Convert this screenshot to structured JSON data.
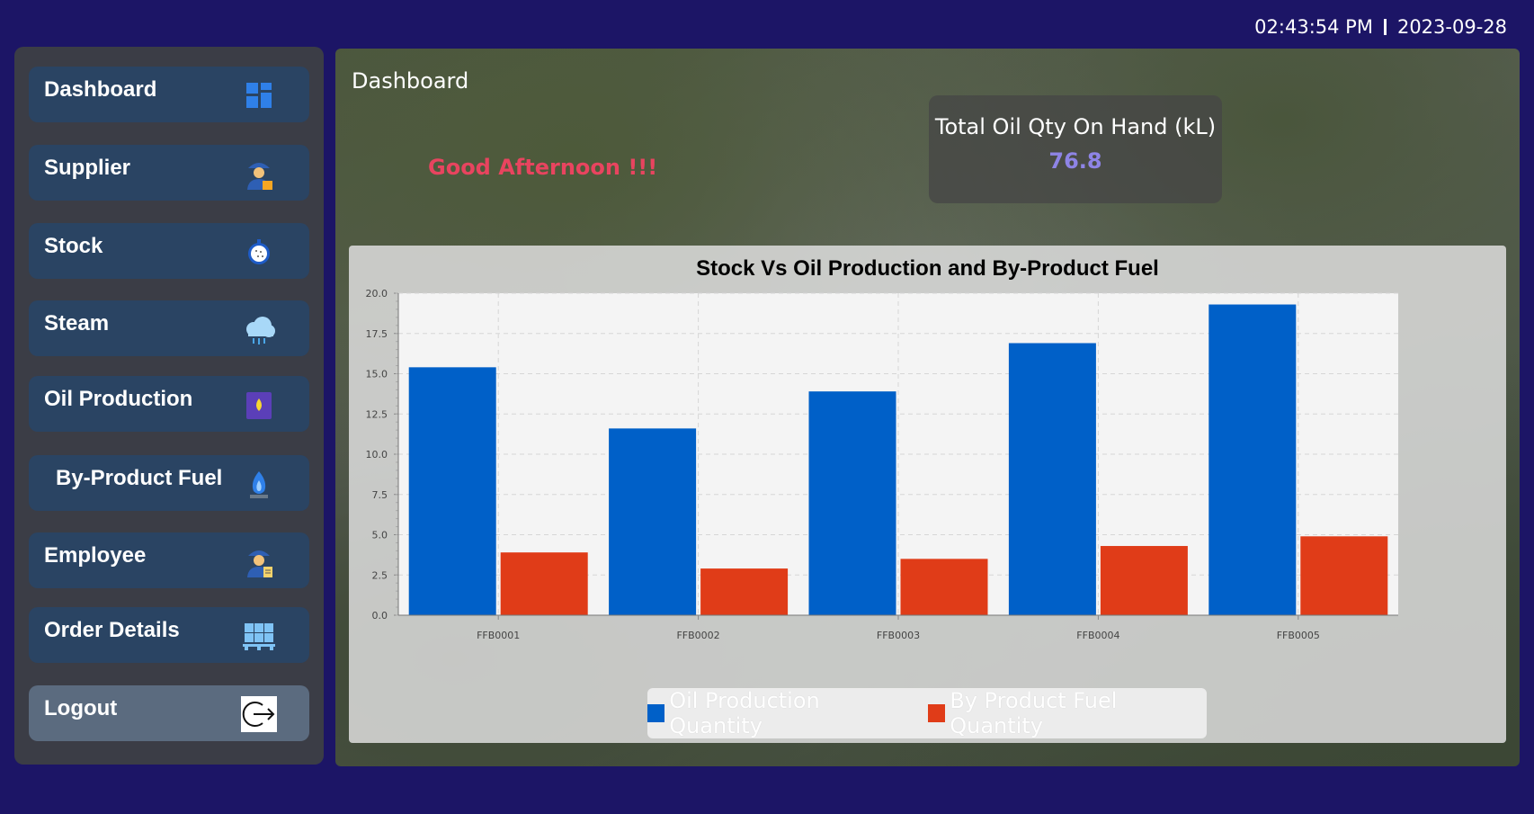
{
  "header": {
    "time": "02:43:54 PM",
    "date": "2023-09-28"
  },
  "sidebar": {
    "items": [
      {
        "label": "Dashboard",
        "icon": "dashboard-icon"
      },
      {
        "label": "Supplier",
        "icon": "supplier-worker-icon"
      },
      {
        "label": "Stock",
        "icon": "stock-fruit-icon"
      },
      {
        "label": "Steam",
        "icon": "steam-cloud-icon"
      },
      {
        "label": "Oil Production",
        "icon": "oil-drop-icon"
      },
      {
        "label": "By-Product Fuel",
        "icon": "fuel-flame-icon"
      },
      {
        "label": "Employee",
        "icon": "employee-worker-icon"
      },
      {
        "label": "Order Details",
        "icon": "pallet-boxes-icon"
      },
      {
        "label": "Logout",
        "icon": "logout-icon"
      }
    ]
  },
  "main": {
    "title": "Dashboard",
    "greeting": "Good Afternoon !!!",
    "stat": {
      "label": "Total Oil Qty On Hand (kL)",
      "value": "76.8"
    }
  },
  "colors": {
    "background": "#1c1566",
    "nav_item": "#2a4463",
    "logout_item": "#5b6b7f",
    "greeting": "#e8445f",
    "stat_value": "#8e84e6",
    "series_oil": "#0060c8",
    "series_fuel": "#e03c18"
  },
  "chart_data": {
    "type": "bar",
    "title": "Stock Vs Oil Production and By-Product Fuel",
    "xlabel": "",
    "ylabel": "",
    "categories": [
      "FFB0001",
      "FFB0002",
      "FFB0003",
      "FFB0004",
      "FFB0005"
    ],
    "series": [
      {
        "name": "Oil Production Quantity",
        "values": [
          15.4,
          11.6,
          13.9,
          16.9,
          19.3
        ],
        "color": "#0060c8"
      },
      {
        "name": "By Product Fuel Quantity",
        "values": [
          3.9,
          2.9,
          3.5,
          4.3,
          4.9
        ],
        "color": "#e03c18"
      }
    ],
    "ylim": [
      0,
      20
    ],
    "yticks": [
      "0.0",
      "2.5",
      "5.0",
      "7.5",
      "10.0",
      "12.5",
      "15.0",
      "17.5",
      "20.0"
    ],
    "grid": true,
    "legend": "bottom"
  }
}
